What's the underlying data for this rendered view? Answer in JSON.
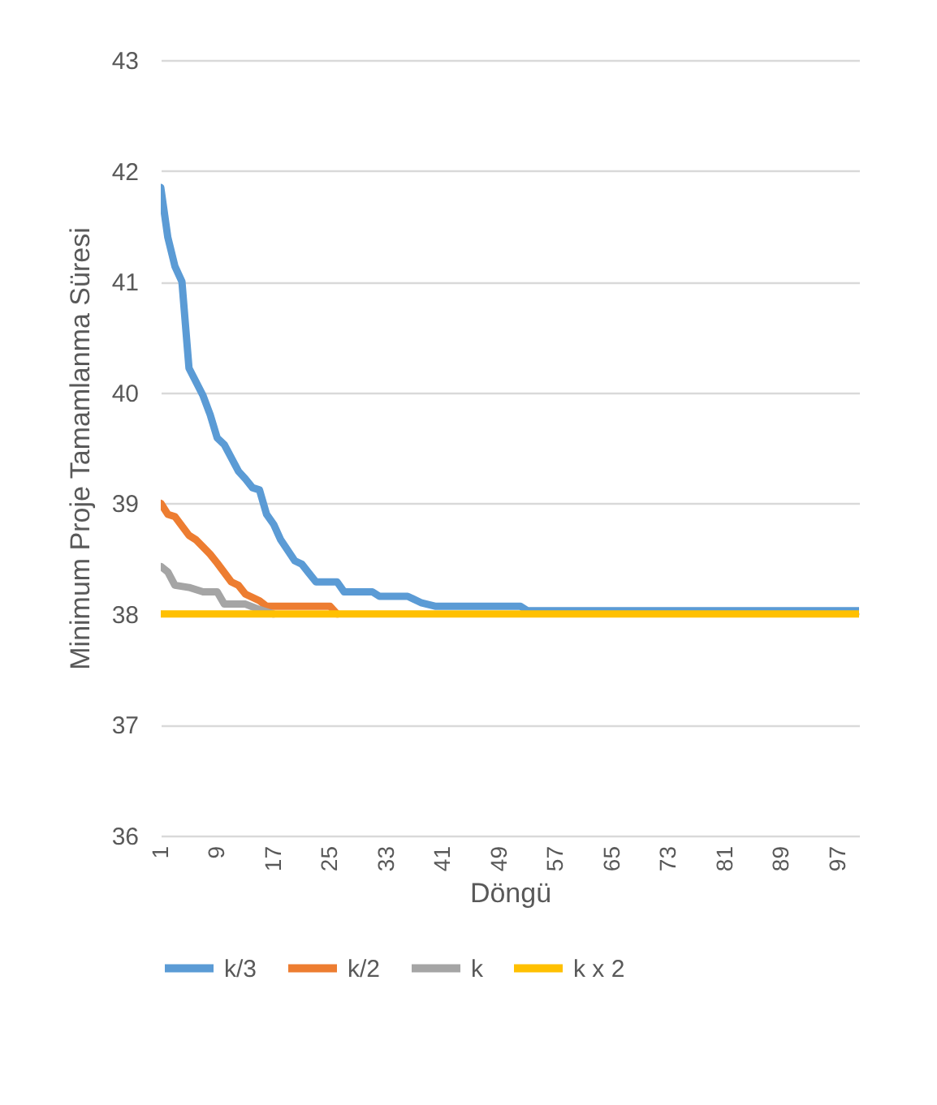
{
  "chart_data": {
    "type": "line",
    "xlabel": "Döngü",
    "ylabel": "Minimum Proje Tamamlanma Süresi",
    "xlim": [
      1,
      100
    ],
    "xticks": [
      1,
      9,
      17,
      25,
      33,
      41,
      49,
      57,
      65,
      73,
      81,
      89,
      97
    ],
    "ylim": [
      36,
      43
    ],
    "yticks": [
      36,
      37,
      38,
      39,
      40,
      41,
      42,
      43
    ],
    "grid": "y",
    "legend": "bottom",
    "series": [
      {
        "name": "k/3",
        "color": "#5b9bd5",
        "x": [
          1,
          2,
          3,
          4,
          5,
          7,
          8,
          9,
          10,
          12,
          13,
          14,
          15,
          16,
          17,
          18,
          20,
          21,
          22,
          23,
          26,
          27,
          31,
          32,
          36,
          38,
          40,
          52,
          53,
          100
        ],
        "values": [
          41.85,
          41.4,
          41.14,
          41.0,
          40.22,
          39.97,
          39.8,
          39.59,
          39.53,
          39.29,
          39.22,
          39.14,
          39.12,
          38.9,
          38.81,
          38.67,
          38.48,
          38.45,
          38.37,
          38.29,
          38.29,
          38.2,
          38.2,
          38.16,
          38.16,
          38.1,
          38.07,
          38.07,
          38.03,
          38.03
        ]
      },
      {
        "name": "k/2",
        "color": "#ed7d31",
        "x": [
          1,
          2,
          3,
          5,
          6,
          8,
          9,
          11,
          12,
          13,
          15,
          16,
          25,
          26
        ],
        "values": [
          39.0,
          38.9,
          38.88,
          38.71,
          38.67,
          38.54,
          38.46,
          38.29,
          38.26,
          38.18,
          38.12,
          38.07,
          38.07,
          38.0
        ]
      },
      {
        "name": "k",
        "color": "#a5a5a5",
        "x": [
          1,
          2,
          3,
          5,
          7,
          9,
          10,
          13,
          15,
          17
        ],
        "values": [
          38.43,
          38.38,
          38.26,
          38.24,
          38.2,
          38.2,
          38.09,
          38.09,
          38.04,
          38.0
        ]
      },
      {
        "name": "k x 2",
        "color": "#ffc000",
        "x": [
          1,
          100
        ],
        "values": [
          38.0,
          38.0
        ]
      }
    ]
  }
}
